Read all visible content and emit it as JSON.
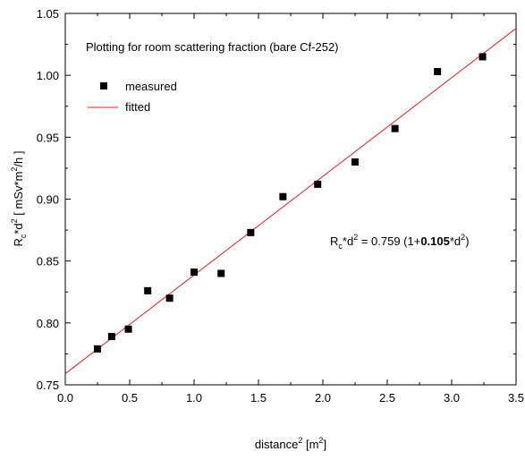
{
  "chart_data": {
    "type": "scatter",
    "title": "Plotting for room scattering fraction (bare Cf-252)",
    "xlabel": {
      "base": "distance",
      "sup": "2",
      "unit_open": " [m",
      "unit_sup": "2",
      "unit_close": "]"
    },
    "ylabel": {
      "p1": "R",
      "sub": "c",
      "p2": "*d",
      "sup1": "2",
      "p3": " [ mSv*m",
      "sup2": "2",
      "p4": "/h ]"
    },
    "xlim": [
      0.0,
      3.5
    ],
    "ylim": [
      0.75,
      1.05
    ],
    "x_ticks": [
      "0.0",
      "0.5",
      "1.0",
      "1.5",
      "2.0",
      "2.5",
      "3.0",
      "3.5"
    ],
    "y_ticks": [
      "0.75",
      "0.80",
      "0.85",
      "0.90",
      "0.95",
      "1.00",
      "1.05"
    ],
    "grid": false,
    "legend_position": "top-left",
    "series": [
      {
        "name": "measured",
        "kind": "points",
        "color": "#000000",
        "x": [
          0.25,
          0.36,
          0.49,
          0.64,
          0.81,
          1.0,
          1.21,
          1.44,
          1.69,
          1.96,
          2.25,
          2.56,
          2.89,
          3.24
        ],
        "y": [
          0.779,
          0.789,
          0.795,
          0.826,
          0.82,
          0.841,
          0.84,
          0.873,
          0.902,
          0.912,
          0.93,
          0.957,
          1.003,
          1.015
        ]
      },
      {
        "name": "fitted",
        "kind": "line",
        "color": "#e02020",
        "intercept": 0.759,
        "coefficient": 0.105
      }
    ],
    "annotation": {
      "p1": "R",
      "sub": "c",
      "p2": "*d",
      "sup1": "2",
      "p3": " = 0.759 (1+",
      "bold": "0.105",
      "p4": "*d",
      "sup2": "2",
      "p5": ")"
    }
  }
}
